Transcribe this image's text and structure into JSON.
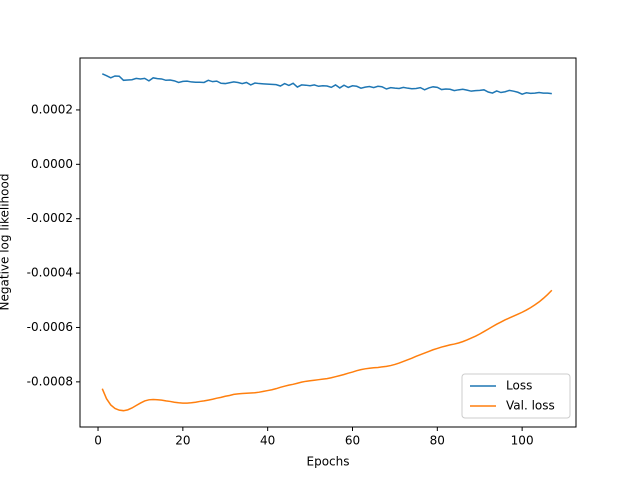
{
  "chart_data": {
    "type": "line",
    "x_label": "Epochs",
    "y_label": "Negative log likelihood",
    "x": [
      1,
      2,
      3,
      4,
      5,
      6,
      7,
      8,
      9,
      10,
      11,
      12,
      13,
      14,
      15,
      16,
      17,
      18,
      19,
      20,
      21,
      22,
      23,
      24,
      25,
      26,
      27,
      28,
      29,
      30,
      31,
      32,
      33,
      34,
      35,
      36,
      37,
      38,
      39,
      40,
      41,
      42,
      43,
      44,
      45,
      46,
      47,
      48,
      49,
      50,
      51,
      52,
      53,
      54,
      55,
      56,
      57,
      58,
      59,
      60,
      61,
      62,
      63,
      64,
      65,
      66,
      67,
      68,
      69,
      70,
      71,
      72,
      73,
      74,
      75,
      76,
      77,
      78,
      79,
      80,
      81,
      82,
      83,
      84,
      85,
      86,
      87,
      88,
      89,
      90,
      91,
      92,
      93,
      94,
      95,
      96,
      97,
      98,
      99,
      100,
      101,
      102,
      103,
      104,
      105,
      106,
      107
    ],
    "series": [
      {
        "name": "Loss",
        "color": "#1f77b4",
        "values": [
          0.000333,
          0.000326,
          0.000318,
          0.000325,
          0.000324,
          0.000309,
          0.00031,
          0.000311,
          0.000316,
          0.000314,
          0.000316,
          0.000307,
          0.000318,
          0.000315,
          0.000314,
          0.000309,
          0.00031,
          0.000307,
          0.000301,
          0.000305,
          0.000306,
          0.000303,
          0.000302,
          0.000302,
          0.000301,
          0.000309,
          0.000304,
          0.000306,
          0.000298,
          0.000297,
          0.0003,
          0.000303,
          0.000301,
          0.000297,
          0.000301,
          0.000292,
          0.000299,
          0.000297,
          0.000296,
          0.000295,
          0.000294,
          0.000293,
          0.000288,
          0.000297,
          0.00029,
          0.000298,
          0.000284,
          0.000292,
          0.000291,
          0.000289,
          0.000292,
          0.000287,
          0.000289,
          0.000288,
          0.000283,
          0.000292,
          0.000281,
          0.000291,
          0.000283,
          0.000289,
          0.000287,
          0.00028,
          0.000284,
          0.000286,
          0.000282,
          0.000287,
          0.000285,
          0.000277,
          0.000282,
          0.00028,
          0.000279,
          0.000283,
          0.00028,
          0.000278,
          0.000279,
          0.000282,
          0.000274,
          0.000281,
          0.000285,
          0.000283,
          0.000275,
          0.000277,
          0.000276,
          0.000271,
          0.000274,
          0.000276,
          0.000273,
          0.000269,
          0.000271,
          0.000272,
          0.000274,
          0.000266,
          0.000262,
          0.00027,
          0.000264,
          0.000267,
          0.000272,
          0.000269,
          0.000265,
          0.000258,
          0.000263,
          0.000261,
          0.000262,
          0.000264,
          0.000262,
          0.000262,
          0.00026
        ]
      },
      {
        "name": "Val. loss",
        "color": "#ff7f0e",
        "values": [
          -0.000825,
          -0.000862,
          -0.000885,
          -0.000898,
          -0.000904,
          -0.000906,
          -0.000903,
          -0.000896,
          -0.000887,
          -0.000878,
          -0.00087,
          -0.000866,
          -0.000865,
          -0.000866,
          -0.000867,
          -0.00087,
          -0.000872,
          -0.000875,
          -0.000877,
          -0.000878,
          -0.000878,
          -0.000877,
          -0.000875,
          -0.000872,
          -0.00087,
          -0.000867,
          -0.000864,
          -0.00086,
          -0.000857,
          -0.000853,
          -0.00085,
          -0.000846,
          -0.000844,
          -0.000843,
          -0.000842,
          -0.000841,
          -0.00084,
          -0.000838,
          -0.000835,
          -0.000832,
          -0.000829,
          -0.000825,
          -0.00082,
          -0.000816,
          -0.000812,
          -0.000809,
          -0.000805,
          -0.000801,
          -0.000798,
          -0.000796,
          -0.000794,
          -0.000792,
          -0.00079,
          -0.000788,
          -0.000785,
          -0.000781,
          -0.000777,
          -0.000773,
          -0.000768,
          -0.000764,
          -0.000759,
          -0.000755,
          -0.000752,
          -0.00075,
          -0.000748,
          -0.000747,
          -0.000745,
          -0.000743,
          -0.00074,
          -0.000736,
          -0.000731,
          -0.000725,
          -0.000719,
          -0.000713,
          -0.000706,
          -0.0007,
          -0.000694,
          -0.000688,
          -0.000682,
          -0.000677,
          -0.000672,
          -0.000668,
          -0.000664,
          -0.000661,
          -0.000657,
          -0.000652,
          -0.000646,
          -0.000639,
          -0.000632,
          -0.000624,
          -0.000615,
          -0.000606,
          -0.000597,
          -0.000588,
          -0.00058,
          -0.000572,
          -0.000565,
          -0.000558,
          -0.000551,
          -0.000544,
          -0.000536,
          -0.000527,
          -0.000517,
          -0.000506,
          -0.000493,
          -0.000479,
          -0.000463
        ]
      }
    ],
    "xlim": [
      -4.25,
      112.7
    ],
    "ylim": [
      -0.000966,
      0.000391
    ],
    "xticks": [
      0,
      20,
      40,
      60,
      80,
      100
    ],
    "yticks": [
      0.0002,
      {
        "value": 0,
        "label": "0.0000"
      },
      -0.0002,
      -0.0004,
      -0.0006,
      -0.0008
    ],
    "legend": "lower right"
  }
}
